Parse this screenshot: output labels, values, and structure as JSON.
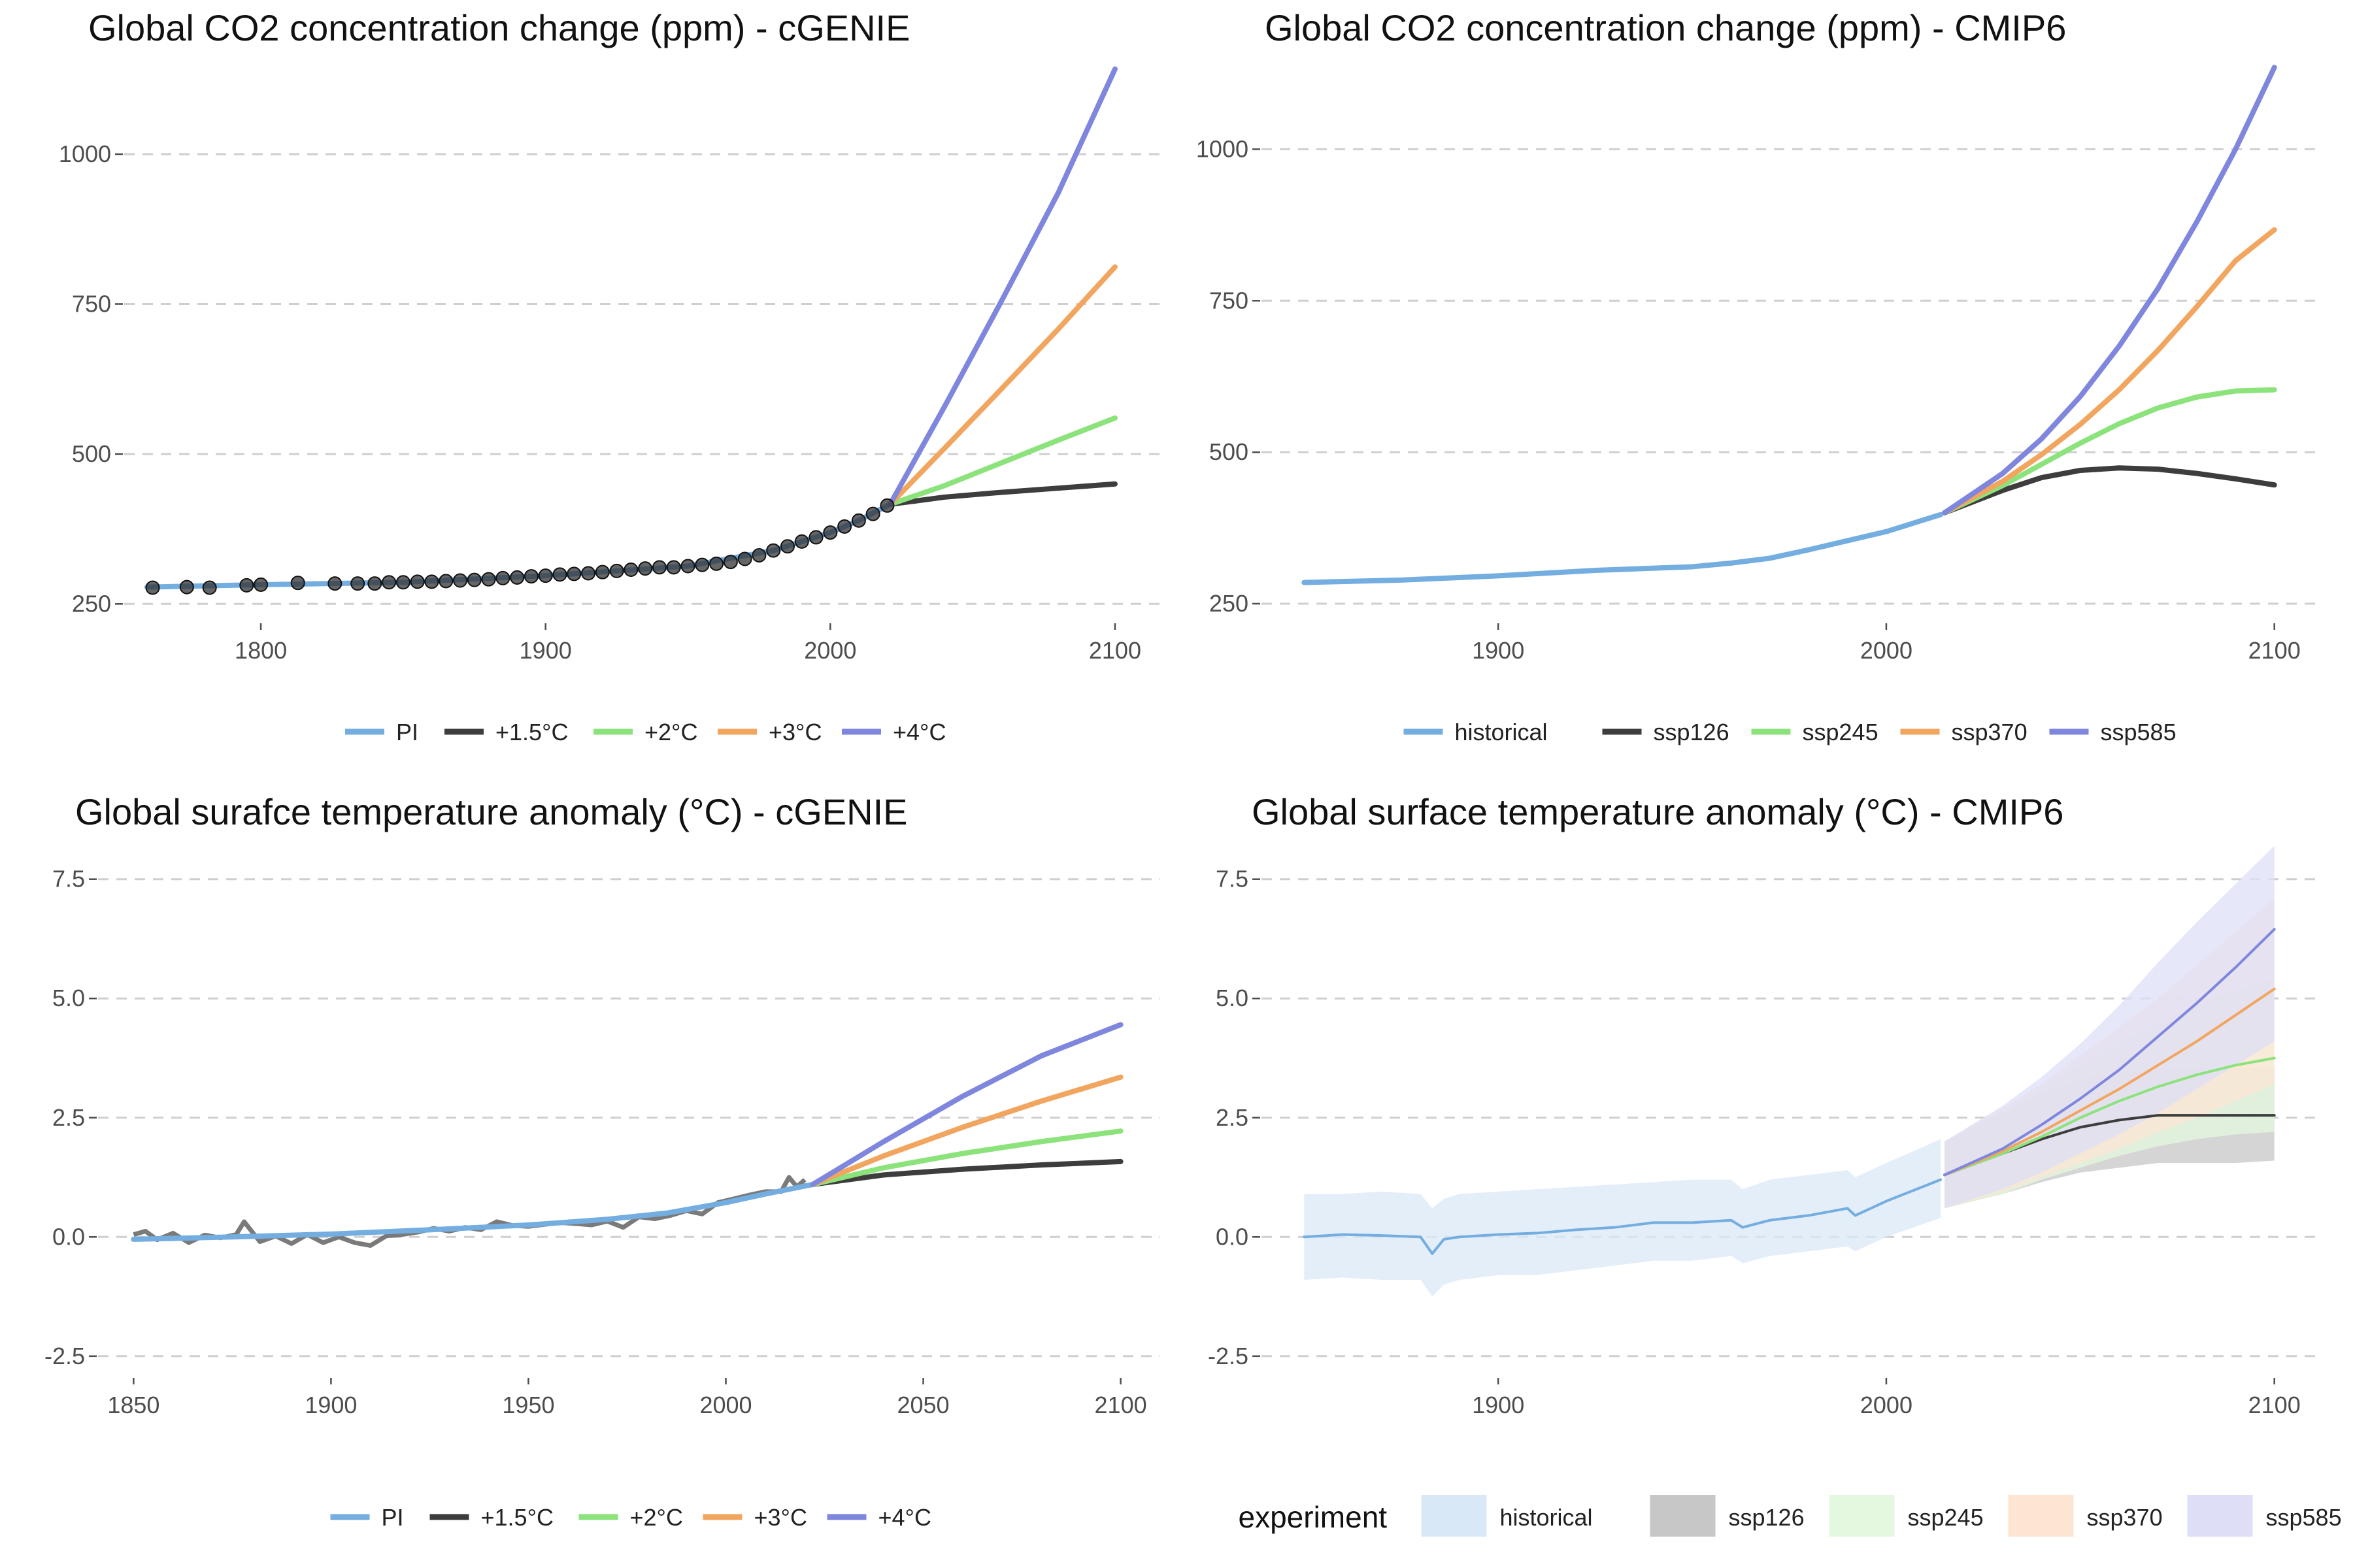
{
  "chart_data": [
    {
      "type": "line",
      "title": "Global CO2 concentration change (ppm) - cGENIE",
      "xticks": [
        1800,
        1900,
        2000,
        2100
      ],
      "yticks": [
        250,
        500,
        750,
        1000
      ],
      "xlim": [
        1752,
        2117
      ],
      "ylim": [
        222,
        1170
      ],
      "grid": true,
      "legend_position": "bottom",
      "series": [
        {
          "name": "PI",
          "color": "#74ADE0",
          "x": [
            1760,
            1800,
            1850,
            1900,
            1950,
            1980,
            2000,
            2010,
            2021
          ],
          "y": [
            278,
            282,
            286,
            297,
            313,
            339,
            369,
            389,
            416
          ]
        },
        {
          "name": "+1.5°C",
          "color": "#3D3D3D",
          "x": [
            2021,
            2040,
            2060,
            2080,
            2100
          ],
          "y": [
            416,
            428,
            436,
            443,
            450
          ]
        },
        {
          "name": "+2°C",
          "color": "#8CE37C",
          "x": [
            2021,
            2040,
            2060,
            2080,
            2100
          ],
          "y": [
            416,
            447,
            485,
            523,
            560
          ]
        },
        {
          "name": "+3°C",
          "color": "#F2A55E",
          "x": [
            2021,
            2040,
            2060,
            2080,
            2100
          ],
          "y": [
            416,
            509,
            608,
            708,
            812
          ]
        },
        {
          "name": "+4°C",
          "color": "#7F86DE",
          "x": [
            2021,
            2040,
            2060,
            2080,
            2100
          ],
          "y": [
            416,
            578,
            754,
            935,
            1142
          ]
        }
      ],
      "observations": {
        "color": "#333333",
        "x": [
          1762,
          1774,
          1782,
          1795,
          1800,
          1813,
          1826,
          1834,
          1840,
          1845,
          1850,
          1855,
          1860,
          1865,
          1870,
          1875,
          1880,
          1885,
          1890,
          1895,
          1900,
          1905,
          1910,
          1915,
          1920,
          1925,
          1930,
          1935,
          1940,
          1945,
          1950,
          1955,
          1960,
          1965,
          1970,
          1975,
          1980,
          1985,
          1990,
          1995,
          2000,
          2005,
          2010,
          2015,
          2020
        ],
        "y": [
          277,
          278,
          277,
          281,
          282,
          285,
          284,
          284,
          284,
          286,
          286,
          287,
          287,
          288,
          289,
          290,
          291,
          293,
          294,
          296,
          297,
          299,
          300,
          301,
          303,
          305,
          307,
          309,
          311,
          311,
          313,
          315,
          317,
          320,
          325,
          331,
          339,
          346,
          354,
          361,
          369,
          379,
          389,
          400,
          414
        ]
      }
    },
    {
      "type": "line",
      "title": "Global CO2 concentration change (ppm) - CMIP6",
      "xticks": [
        1900,
        2000,
        2100
      ],
      "yticks": [
        250,
        500,
        750,
        1000
      ],
      "xlim": [
        1839,
        2111
      ],
      "ylim": [
        222,
        1160
      ],
      "grid": true,
      "legend_position": "bottom",
      "series": [
        {
          "name": "historical",
          "color": "#74ADE0",
          "x": [
            1850,
            1875,
            1900,
            1925,
            1950,
            1960,
            1970,
            1980,
            1990,
            2000,
            2010,
            2014
          ],
          "y": [
            285,
            289,
            296,
            305,
            311,
            317,
            325,
            339,
            354,
            369,
            389,
            397
          ]
        },
        {
          "name": "ssp126",
          "color": "#3D3D3D",
          "x": [
            2015,
            2030,
            2040,
            2050,
            2060,
            2070,
            2080,
            2090,
            2100
          ],
          "y": [
            400,
            437,
            458,
            470,
            474,
            472,
            465,
            456,
            446
          ]
        },
        {
          "name": "ssp245",
          "color": "#8CE37C",
          "x": [
            2015,
            2030,
            2040,
            2050,
            2060,
            2070,
            2080,
            2090,
            2100
          ],
          "y": [
            400,
            445,
            480,
            515,
            547,
            573,
            591,
            601,
            603
          ]
        },
        {
          "name": "ssp370",
          "color": "#F2A55E",
          "x": [
            2015,
            2030,
            2040,
            2050,
            2060,
            2070,
            2080,
            2090,
            2100
          ],
          "y": [
            400,
            452,
            496,
            546,
            603,
            668,
            740,
            816,
            867
          ]
        },
        {
          "name": "ssp585",
          "color": "#7F86DE",
          "x": [
            2015,
            2030,
            2040,
            2050,
            2060,
            2070,
            2080,
            2090,
            2100
          ],
          "y": [
            400,
            465,
            522,
            592,
            675,
            770,
            880,
            1000,
            1135
          ]
        }
      ]
    },
    {
      "type": "line",
      "title": "Global surafce temperature anomaly (°C) - cGENIE",
      "xticks": [
        1850,
        1900,
        1950,
        2000,
        2050,
        2100
      ],
      "yticks": [
        -2.5,
        0.0,
        2.5,
        5.0,
        7.5
      ],
      "xlim": [
        1841,
        2110
      ],
      "ylim": [
        -2.9,
        8.4
      ],
      "grid": true,
      "legend_position": "bottom",
      "series": [
        {
          "name": "PI",
          "color": "#74ADE0",
          "x": [
            1850,
            1875,
            1900,
            1925,
            1950,
            1970,
            1985,
            2000,
            2010,
            2022
          ],
          "y": [
            -0.05,
            0.0,
            0.06,
            0.15,
            0.25,
            0.37,
            0.5,
            0.72,
            0.9,
            1.1
          ]
        },
        {
          "name": "+1.5°C",
          "color": "#3D3D3D",
          "x": [
            2022,
            2040,
            2060,
            2080,
            2100
          ],
          "y": [
            1.1,
            1.3,
            1.42,
            1.51,
            1.58
          ]
        },
        {
          "name": "+2°C",
          "color": "#8CE37C",
          "x": [
            2022,
            2040,
            2060,
            2080,
            2100
          ],
          "y": [
            1.1,
            1.45,
            1.75,
            2.0,
            2.22
          ]
        },
        {
          "name": "+3°C",
          "color": "#F2A55E",
          "x": [
            2022,
            2040,
            2060,
            2080,
            2100
          ],
          "y": [
            1.1,
            1.7,
            2.3,
            2.85,
            3.35
          ]
        },
        {
          "name": "+4°C",
          "color": "#7F86DE",
          "x": [
            2022,
            2040,
            2060,
            2080,
            2100
          ],
          "y": [
            1.1,
            2.0,
            2.95,
            3.8,
            4.45
          ]
        }
      ],
      "observations": {
        "color": "#6B6B6B",
        "x": [
          1850,
          1853,
          1856,
          1860,
          1864,
          1868,
          1872,
          1876,
          1878,
          1882,
          1886,
          1890,
          1894,
          1898,
          1902,
          1906,
          1910,
          1914,
          1918,
          1922,
          1926,
          1930,
          1934,
          1938,
          1942,
          1946,
          1950,
          1954,
          1958,
          1962,
          1966,
          1970,
          1974,
          1978,
          1982,
          1986,
          1990,
          1994,
          1998,
          2002,
          2006,
          2010,
          2014,
          2016,
          2018,
          2020
        ],
        "y": [
          0.05,
          0.12,
          -0.06,
          0.08,
          -0.12,
          0.04,
          -0.02,
          0.05,
          0.32,
          -0.1,
          0.02,
          -0.14,
          0.05,
          -0.12,
          0.0,
          -0.12,
          -0.18,
          0.02,
          0.05,
          0.1,
          0.18,
          0.12,
          0.2,
          0.15,
          0.32,
          0.24,
          0.22,
          0.26,
          0.3,
          0.28,
          0.25,
          0.33,
          0.2,
          0.42,
          0.38,
          0.45,
          0.55,
          0.48,
          0.72,
          0.8,
          0.88,
          0.95,
          0.95,
          1.25,
          1.05,
          1.2
        ]
      }
    },
    {
      "type": "line",
      "title": "Global surface temperature anomaly (°C) - CMIP6",
      "xticks": [
        1900,
        2000,
        2100
      ],
      "yticks": [
        -2.5,
        0.0,
        2.5,
        5.0,
        7.5
      ],
      "xlim": [
        1839,
        2111
      ],
      "ylim": [
        -2.9,
        8.4
      ],
      "grid": true,
      "legend_position": "bottom",
      "legend_title": "experiment",
      "series": [
        {
          "name": "historical",
          "color": "#74ADE0",
          "band": "#D9E8F7",
          "x": [
            1850,
            1860,
            1870,
            1880,
            1883,
            1886,
            1890,
            1900,
            1910,
            1920,
            1930,
            1940,
            1950,
            1960,
            1963,
            1970,
            1980,
            1990,
            1992,
            2000,
            2014
          ],
          "y": [
            0.0,
            0.05,
            0.03,
            0.0,
            -0.35,
            -0.05,
            0.0,
            0.05,
            0.08,
            0.15,
            0.2,
            0.3,
            0.3,
            0.35,
            0.2,
            0.35,
            0.45,
            0.6,
            0.45,
            0.75,
            1.2
          ],
          "lower": [
            -0.9,
            -0.85,
            -0.9,
            -0.9,
            -1.25,
            -1.0,
            -0.9,
            -0.8,
            -0.8,
            -0.7,
            -0.6,
            -0.5,
            -0.5,
            -0.4,
            -0.55,
            -0.4,
            -0.3,
            -0.2,
            -0.3,
            0.0,
            0.4
          ],
          "upper": [
            0.9,
            0.9,
            0.95,
            0.9,
            0.6,
            0.8,
            0.9,
            0.95,
            1.0,
            1.05,
            1.1,
            1.15,
            1.2,
            1.2,
            1.0,
            1.2,
            1.3,
            1.4,
            1.25,
            1.55,
            2.05
          ]
        },
        {
          "name": "ssp126",
          "color": "#3D3D3D",
          "band": "#C7C7C7",
          "x": [
            2015,
            2030,
            2040,
            2050,
            2060,
            2070,
            2080,
            2090,
            2100
          ],
          "y": [
            1.3,
            1.75,
            2.05,
            2.3,
            2.45,
            2.55,
            2.55,
            2.55,
            2.55
          ],
          "lower": [
            0.6,
            0.9,
            1.15,
            1.35,
            1.45,
            1.55,
            1.55,
            1.55,
            1.6
          ],
          "upper": [
            2.0,
            2.6,
            3.0,
            3.3,
            3.45,
            3.55,
            3.55,
            3.55,
            3.55
          ]
        },
        {
          "name": "ssp245",
          "color": "#8CE37C",
          "band": "#E4F8DF",
          "x": [
            2015,
            2030,
            2040,
            2050,
            2060,
            2070,
            2080,
            2090,
            2100
          ],
          "y": [
            1.3,
            1.75,
            2.1,
            2.5,
            2.85,
            3.15,
            3.4,
            3.6,
            3.75
          ],
          "lower": [
            0.6,
            0.9,
            1.2,
            1.45,
            1.7,
            1.9,
            2.05,
            2.15,
            2.2
          ],
          "upper": [
            2.0,
            2.6,
            3.1,
            3.6,
            4.05,
            4.45,
            4.85,
            5.15,
            5.4
          ]
        },
        {
          "name": "ssp370",
          "color": "#F2A55E",
          "band": "#FCE5D3",
          "x": [
            2015,
            2030,
            2040,
            2050,
            2060,
            2070,
            2080,
            2090,
            2100
          ],
          "y": [
            1.3,
            1.8,
            2.2,
            2.65,
            3.1,
            3.6,
            4.1,
            4.65,
            5.2
          ],
          "lower": [
            0.6,
            0.95,
            1.25,
            1.55,
            1.85,
            2.2,
            2.5,
            2.85,
            3.2
          ],
          "upper": [
            2.0,
            2.7,
            3.2,
            3.8,
            4.4,
            5.0,
            5.7,
            6.4,
            7.1
          ]
        },
        {
          "name": "ssp585",
          "color": "#7F86DE",
          "band": "#DEDFF7",
          "x": [
            2015,
            2030,
            2040,
            2050,
            2060,
            2070,
            2080,
            2090,
            2100
          ],
          "y": [
            1.3,
            1.85,
            2.35,
            2.9,
            3.5,
            4.2,
            4.9,
            5.65,
            6.45
          ],
          "lower": [
            0.6,
            1.0,
            1.35,
            1.75,
            2.15,
            2.6,
            3.1,
            3.6,
            4.1
          ],
          "upper": [
            2.0,
            2.75,
            3.35,
            4.05,
            4.85,
            5.75,
            6.6,
            7.4,
            8.2
          ]
        }
      ]
    }
  ]
}
